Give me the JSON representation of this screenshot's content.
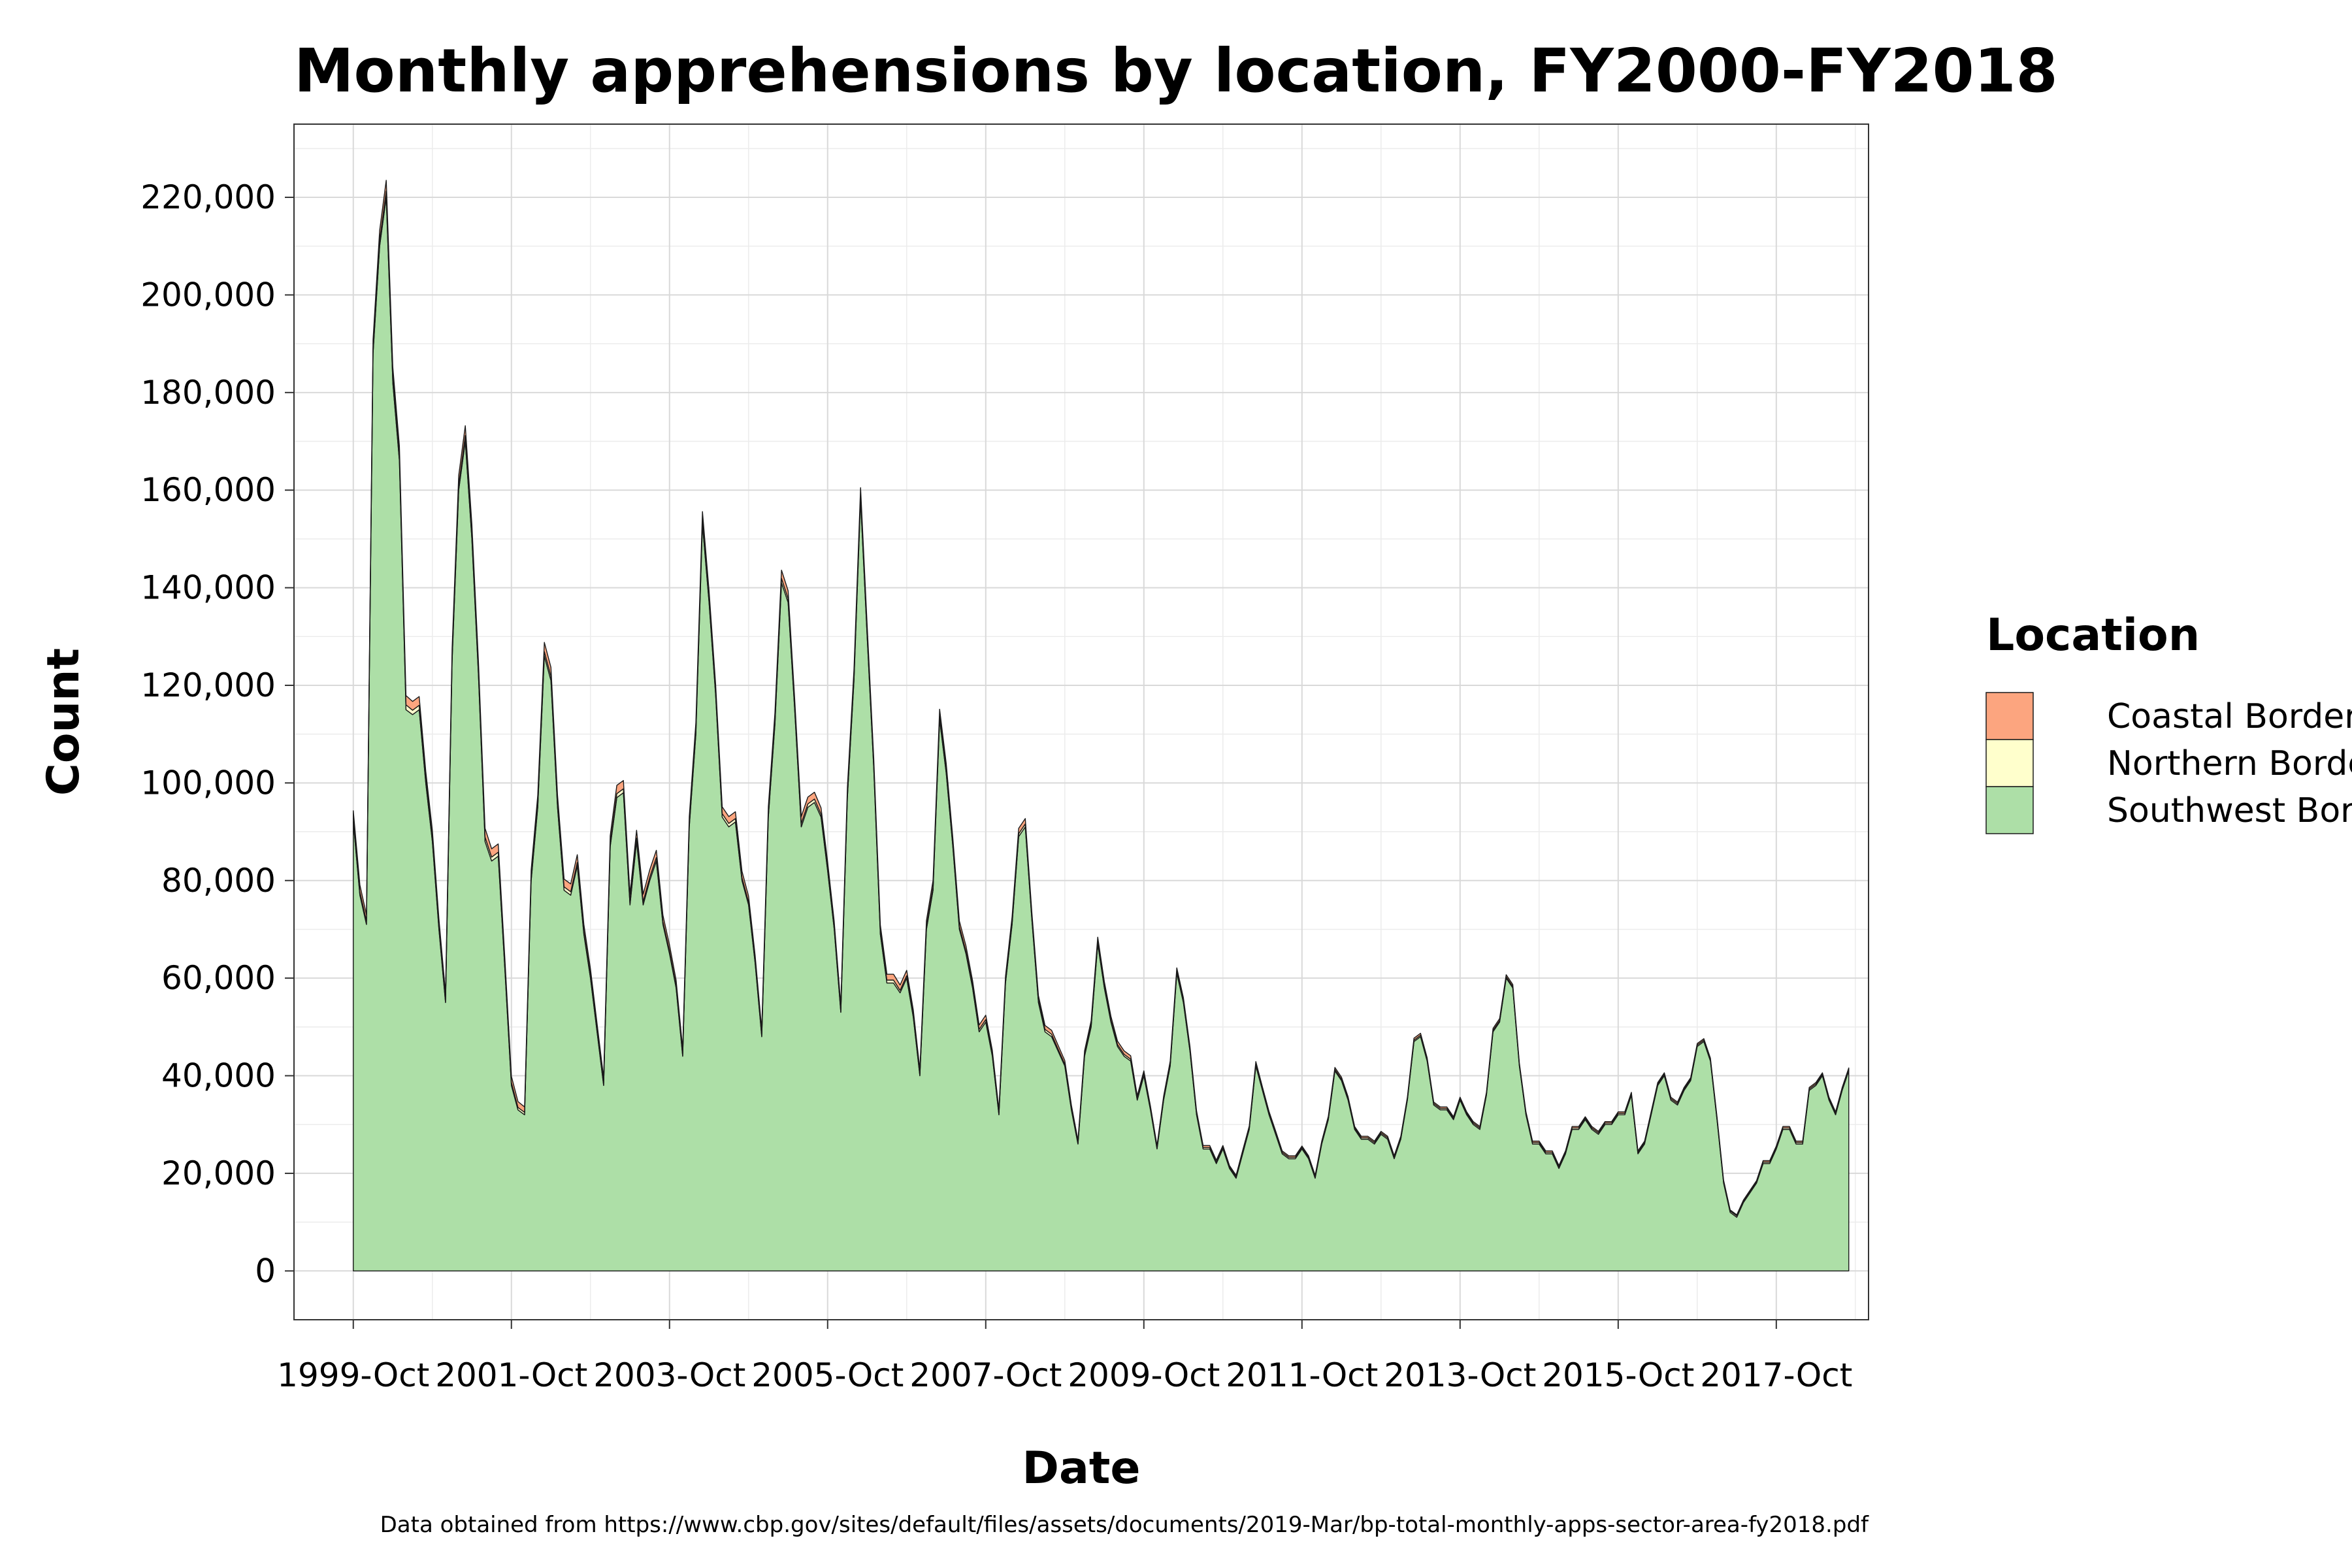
{
  "chart_data": {
    "type": "area",
    "stacked": true,
    "title": "Monthly apprehensions by location, FY2000-FY2018",
    "xlabel": "Date",
    "ylabel": "Count",
    "caption": "Data obtained from https://www.cbp.gov/sites/default/files/assets/documents/2019-Mar/bp-total-monthly-apps-sector-area-fy2018.pdf",
    "legend": {
      "title": "Location",
      "position": "right",
      "entries": [
        {
          "name": "Coastal Border",
          "color": "#fca57f"
        },
        {
          "name": "Northern Border",
          "color": "#ffffcc"
        },
        {
          "name": "Southwest Border",
          "color": "#addfa7"
        }
      ]
    },
    "grid": true,
    "x_start": "1999-10",
    "x_ticks": [
      "1999-Oct",
      "2001-Oct",
      "2003-Oct",
      "2005-Oct",
      "2007-Oct",
      "2009-Oct",
      "2011-Oct",
      "2013-Oct",
      "2015-Oct",
      "2017-Oct"
    ],
    "y_ticks": [
      "0",
      "20,000",
      "40,000",
      "60,000",
      "80,000",
      "100,000",
      "120,000",
      "140,000",
      "160,000",
      "180,000",
      "200,000",
      "220,000"
    ],
    "ylim": [
      -10000,
      235000
    ],
    "x_range": [
      "1999-01",
      "2018-12"
    ],
    "series": [
      {
        "name": "Southwest Border",
        "values": [
          92000,
          77000,
          71000,
          188000,
          210000,
          220000,
          182000,
          166000,
          115000,
          114000,
          115000,
          100000,
          88000,
          70000,
          55000,
          125000,
          160000,
          170000,
          150000,
          122000,
          88000,
          84000,
          85000,
          62000,
          38000,
          33000,
          32000,
          80000,
          95000,
          126000,
          121000,
          95000,
          78000,
          77000,
          83000,
          69000,
          60000,
          49000,
          38000,
          87000,
          97000,
          98000,
          75000,
          88000,
          75000,
          80000,
          84000,
          71000,
          65000,
          58000,
          44000,
          91000,
          110000,
          153000,
          137000,
          118000,
          93000,
          91000,
          92000,
          80000,
          75000,
          63000,
          48000,
          93000,
          112000,
          141000,
          137000,
          115000,
          91000,
          95000,
          96000,
          93000,
          82000,
          70000,
          53000,
          97000,
          121000,
          158000,
          130000,
          103000,
          69000,
          59000,
          59000,
          57000,
          60000,
          52000,
          40000,
          70000,
          78000,
          113000,
          102000,
          87000,
          70000,
          65000,
          58000,
          49000,
          51000,
          44000,
          32000,
          59000,
          71000,
          89000,
          91000,
          72000,
          55000,
          49000,
          48000,
          45000,
          42000,
          33000,
          26000,
          44000,
          50000,
          67000,
          58000,
          51000,
          46000,
          44000,
          43000,
          35000,
          40000,
          33000,
          25000,
          35000,
          42000,
          61000,
          55000,
          45000,
          32000,
          25000,
          25000,
          22000,
          25000,
          21000,
          19000,
          24000,
          29000,
          42000,
          37000,
          32000,
          28000,
          24000,
          23000,
          23000,
          25000,
          23000,
          19000,
          26000,
          31000,
          41000,
          39000,
          35000,
          29000,
          27000,
          27000,
          26000,
          28000,
          27000,
          23000,
          27000,
          35000,
          47000,
          48000,
          43000,
          34000,
          33000,
          33000,
          31000,
          35000,
          32000,
          30000,
          29000,
          36000,
          49000,
          51000,
          60000,
          58000,
          42000,
          32000,
          26000,
          26000,
          24000,
          24000,
          21000,
          24000,
          29000,
          29000,
          31000,
          29000,
          28000,
          30000,
          30000,
          32000,
          32000,
          36000,
          24000,
          26000,
          32000,
          38000,
          40000,
          35000,
          34000,
          37000,
          39000,
          46000,
          47000,
          43000,
          31000,
          18000,
          12000,
          11000,
          14000,
          16000,
          18000,
          22000,
          22000,
          25000,
          29000,
          29000,
          26000,
          26000,
          37000,
          38000,
          40000,
          35000,
          32000,
          37000,
          41000
        ]
      },
      {
        "name": "Northern Border",
        "values": [
          800,
          700,
          700,
          1000,
          1200,
          1300,
          1200,
          1100,
          1000,
          900,
          900,
          800,
          800,
          700,
          600,
          900,
          1100,
          1200,
          1100,
          1000,
          900,
          800,
          800,
          700,
          600,
          500,
          500,
          700,
          800,
          900,
          900,
          800,
          700,
          700,
          700,
          600,
          600,
          500,
          500,
          700,
          800,
          800,
          700,
          700,
          700,
          700,
          700,
          600,
          600,
          500,
          500,
          700,
          800,
          900,
          800,
          700,
          700,
          700,
          700,
          600,
          600,
          500,
          500,
          700,
          800,
          900,
          800,
          700,
          700,
          700,
          700,
          600,
          600,
          500,
          500,
          700,
          800,
          900,
          800,
          700,
          600,
          600,
          600,
          500,
          500,
          500,
          400,
          600,
          700,
          700,
          700,
          600,
          600,
          500,
          500,
          500,
          500,
          400,
          400,
          500,
          600,
          600,
          600,
          500,
          500,
          500,
          500,
          400,
          400,
          400,
          300,
          400,
          500,
          500,
          500,
          400,
          400,
          400,
          400,
          300,
          400,
          300,
          300,
          300,
          400,
          400,
          400,
          400,
          300,
          300,
          300,
          300,
          300,
          300,
          300,
          300,
          300,
          400,
          300,
          300,
          300,
          300,
          300,
          300,
          300,
          300,
          300,
          300,
          300,
          300,
          300,
          300,
          300,
          300,
          300,
          300,
          300,
          300,
          300,
          300,
          300,
          300,
          300,
          300,
          300,
          300,
          300,
          300,
          300,
          300,
          300,
          300,
          300,
          300,
          300,
          300,
          300,
          300,
          300,
          300,
          300,
          300,
          300,
          300,
          300,
          300,
          300,
          300,
          300,
          300,
          300,
          300,
          300,
          300,
          300,
          300,
          300,
          300,
          300,
          300,
          300,
          300,
          300,
          300,
          300,
          300,
          300,
          300,
          300,
          300,
          300,
          300,
          300,
          300,
          300,
          300,
          300,
          300,
          300,
          300,
          300,
          300,
          300,
          300,
          300,
          300,
          300,
          300
        ]
      },
      {
        "name": "Coastal Border",
        "values": [
          1500,
          1400,
          1300,
          1800,
          2000,
          2200,
          2000,
          1900,
          1900,
          1800,
          1800,
          1600,
          1500,
          1400,
          1300,
          1700,
          1900,
          2000,
          1900,
          1800,
          1800,
          1700,
          1700,
          1500,
          1300,
          1200,
          1100,
          1500,
          1700,
          1900,
          1800,
          1700,
          1600,
          1600,
          1600,
          1400,
          1300,
          1200,
          1100,
          1500,
          1700,
          1700,
          1500,
          1600,
          1500,
          1500,
          1500,
          1300,
          1200,
          1100,
          1000,
          1400,
          1600,
          1700,
          1600,
          1500,
          1400,
          1400,
          1400,
          1300,
          1200,
          1100,
          1000,
          1400,
          1600,
          1700,
          1600,
          1500,
          1400,
          1400,
          1400,
          1300,
          1200,
          1100,
          1000,
          1400,
          1500,
          1600,
          1500,
          1400,
          1300,
          1200,
          1200,
          1100,
          1100,
          1000,
          900,
          1200,
          1300,
          1400,
          1300,
          1200,
          1100,
          1100,
          1000,
          900,
          900,
          800,
          700,
          900,
          1000,
          1100,
          1100,
          1000,
          900,
          800,
          800,
          800,
          700,
          600,
          500,
          700,
          800,
          900,
          800,
          800,
          700,
          700,
          700,
          600,
          600,
          500,
          400,
          500,
          600,
          700,
          600,
          600,
          500,
          400,
          400,
          400,
          400,
          300,
          300,
          400,
          400,
          500,
          400,
          400,
          400,
          300,
          300,
          300,
          300,
          300,
          300,
          300,
          400,
          400,
          400,
          400,
          300,
          300,
          300,
          300,
          300,
          300,
          300,
          300,
          300,
          400,
          400,
          400,
          300,
          300,
          300,
          300,
          300,
          300,
          300,
          300,
          300,
          400,
          400,
          400,
          400,
          300,
          300,
          300,
          300,
          300,
          300,
          300,
          300,
          300,
          300,
          300,
          300,
          300,
          300,
          300,
          300,
          300,
          300,
          300,
          300,
          300,
          300,
          300,
          300,
          300,
          300,
          300,
          300,
          300,
          300,
          300,
          300,
          200,
          200,
          200,
          200,
          200,
          300,
          300,
          300,
          300,
          300,
          300,
          300,
          300,
          300,
          300,
          300,
          300,
          300,
          300
        ]
      }
    ]
  }
}
